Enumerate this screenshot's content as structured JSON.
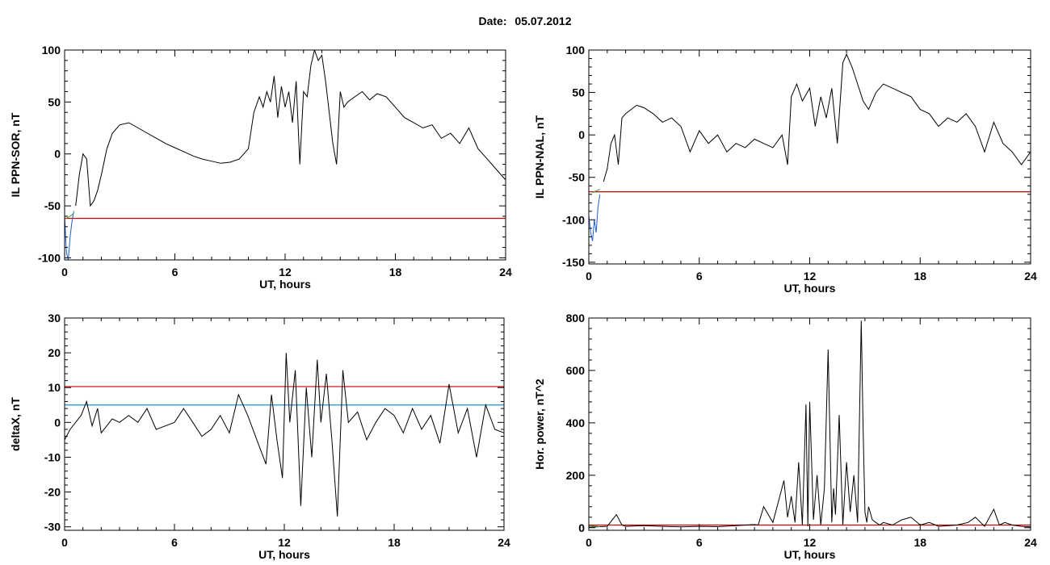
{
  "header": {
    "date_label": "Date:",
    "date_value": "05.07.2012"
  },
  "chart_data": [
    {
      "type": "line",
      "xlabel": "UT, hours",
      "ylabel": "IL PPN-SOR, nT",
      "xlim": [
        0,
        24
      ],
      "ylim": [
        -102,
        100
      ],
      "xticks": [
        0,
        6,
        12,
        18,
        24
      ],
      "yticks": [
        -100,
        -50,
        0,
        50,
        100
      ],
      "thresholds": [
        {
          "value": -62,
          "color": "#cc0000"
        }
      ],
      "series": [
        {
          "color": "#000000",
          "x": [
            0.6,
            0.8,
            1.0,
            1.2,
            1.4,
            1.6,
            1.8,
            2.0,
            2.3,
            2.6,
            3.0,
            3.5,
            4.0,
            4.5,
            5.0,
            5.5,
            6.0,
            6.5,
            7.0,
            7.5,
            8.0,
            8.5,
            9.0,
            9.5,
            10.0,
            10.3,
            10.6,
            10.8,
            11.0,
            11.2,
            11.4,
            11.6,
            11.8,
            12.0,
            12.2,
            12.4,
            12.6,
            12.8,
            13.0,
            13.2,
            13.4,
            13.6,
            13.8,
            14.0,
            14.2,
            14.4,
            14.6,
            14.8,
            15.0,
            15.2,
            15.4,
            15.8,
            16.2,
            16.6,
            17.0,
            17.5,
            18.0,
            18.5,
            19.0,
            19.5,
            20.0,
            20.5,
            21.0,
            21.5,
            22.0,
            22.5,
            23.0,
            23.5,
            24.0
          ],
          "y": [
            -50,
            -20,
            0,
            -5,
            -50,
            -45,
            -35,
            -20,
            5,
            20,
            28,
            30,
            25,
            20,
            15,
            10,
            6,
            2,
            -2,
            -5,
            -7,
            -9,
            -8,
            -5,
            5,
            40,
            55,
            45,
            60,
            50,
            75,
            35,
            65,
            45,
            60,
            30,
            70,
            -10,
            60,
            55,
            85,
            100,
            90,
            95,
            70,
            40,
            10,
            -10,
            60,
            45,
            50,
            55,
            60,
            52,
            58,
            55,
            45,
            35,
            30,
            25,
            28,
            15,
            20,
            10,
            25,
            5,
            -5,
            -15,
            -25
          ]
        },
        {
          "color": "#1f5fd0",
          "x": [
            0.0,
            0.1,
            0.2,
            0.3,
            0.4,
            0.5
          ],
          "y": [
            -60,
            -95,
            -102,
            -80,
            -65,
            -55
          ]
        },
        {
          "color": "#2fa02f",
          "x": [
            0.1,
            0.3,
            0.5
          ],
          "y": [
            -62,
            -60,
            -57
          ]
        }
      ]
    },
    {
      "type": "line",
      "xlabel": "UT, hours",
      "ylabel": "IL PPN-NAL, nT",
      "xlim": [
        0,
        24
      ],
      "ylim": [
        -152,
        100
      ],
      "xticks": [
        0,
        6,
        12,
        18,
        24
      ],
      "yticks": [
        -150,
        -100,
        -50,
        0,
        50,
        100
      ],
      "thresholds": [
        {
          "value": -67,
          "color": "#cc0000"
        }
      ],
      "series": [
        {
          "color": "#000000",
          "x": [
            0.8,
            1.0,
            1.2,
            1.4,
            1.6,
            1.8,
            2.0,
            2.3,
            2.6,
            3.0,
            3.5,
            4.0,
            4.5,
            5.0,
            5.5,
            6.0,
            6.5,
            7.0,
            7.5,
            8.0,
            8.5,
            9.0,
            9.5,
            10.0,
            10.5,
            10.8,
            11.0,
            11.3,
            11.6,
            12.0,
            12.3,
            12.6,
            12.9,
            13.2,
            13.5,
            13.8,
            14.0,
            14.3,
            14.6,
            14.9,
            15.2,
            15.6,
            16.0,
            16.5,
            17.0,
            17.5,
            18.0,
            18.5,
            19.0,
            19.5,
            20.0,
            20.5,
            21.0,
            21.5,
            22.0,
            22.5,
            23.0,
            23.5,
            24.0
          ],
          "y": [
            -55,
            -40,
            -10,
            0,
            -35,
            20,
            25,
            30,
            35,
            32,
            25,
            15,
            20,
            10,
            -20,
            5,
            -10,
            0,
            -20,
            -10,
            -15,
            -5,
            -10,
            -15,
            0,
            -35,
            45,
            60,
            40,
            55,
            10,
            45,
            20,
            55,
            -10,
            85,
            95,
            80,
            60,
            40,
            30,
            50,
            60,
            55,
            50,
            45,
            30,
            25,
            10,
            20,
            15,
            25,
            10,
            -20,
            15,
            -10,
            -20,
            -35,
            -20
          ]
        },
        {
          "color": "#1f5fd0",
          "x": [
            0.0,
            0.1,
            0.2,
            0.3,
            0.4,
            0.5,
            0.6
          ],
          "y": [
            -95,
            -115,
            -125,
            -100,
            -115,
            -85,
            -70
          ]
        },
        {
          "color": "#2fa02f",
          "x": [
            0.2,
            0.4,
            0.6
          ],
          "y": [
            -68,
            -66,
            -64
          ]
        }
      ]
    },
    {
      "type": "line",
      "xlabel": "UT, hours",
      "ylabel": "deltaX, nT",
      "xlim": [
        0,
        24
      ],
      "ylim": [
        -31,
        30
      ],
      "xticks": [
        0,
        6,
        12,
        18,
        24
      ],
      "yticks": [
        -30,
        -20,
        -10,
        0,
        10,
        20,
        30
      ],
      "thresholds": [
        {
          "value": 10.3,
          "color": "#cc0000"
        },
        {
          "value": 5,
          "color": "#1f8fd0"
        }
      ],
      "series": [
        {
          "color": "#000000",
          "x": [
            0.0,
            0.3,
            0.6,
            0.9,
            1.2,
            1.5,
            1.8,
            2.0,
            2.3,
            2.6,
            3.0,
            3.5,
            4.0,
            4.5,
            5.0,
            5.5,
            6.0,
            6.5,
            7.0,
            7.5,
            8.0,
            8.5,
            9.0,
            9.5,
            10.0,
            10.5,
            11.0,
            11.3,
            11.6,
            11.9,
            12.1,
            12.3,
            12.6,
            12.9,
            13.2,
            13.5,
            13.8,
            14.0,
            14.3,
            14.6,
            14.9,
            15.2,
            15.5,
            16.0,
            16.5,
            17.0,
            17.5,
            18.0,
            18.5,
            19.0,
            19.5,
            20.0,
            20.5,
            21.0,
            21.5,
            22.0,
            22.5,
            23.0,
            23.5,
            24.0
          ],
          "y": [
            -5,
            -2,
            0,
            2,
            6,
            -1,
            4,
            -3,
            -1,
            1,
            0,
            2,
            0,
            4,
            -2,
            -1,
            0,
            4,
            0,
            -4,
            -2,
            2,
            -3,
            8,
            2,
            -5,
            -12,
            8,
            -5,
            -16,
            20,
            0,
            15,
            -24,
            10,
            -10,
            18,
            0,
            14,
            -5,
            -27,
            15,
            0,
            3,
            -5,
            0,
            4,
            2,
            -3,
            4,
            -2,
            2,
            -6,
            11,
            -3,
            4,
            -10,
            5,
            -2,
            -3
          ]
        }
      ]
    },
    {
      "type": "line",
      "xlabel": "UT, hours",
      "ylabel": "Hor. power, nT^2",
      "xlim": [
        0,
        24
      ],
      "ylim": [
        -10,
        800
      ],
      "xticks": [
        0,
        6,
        12,
        18,
        24
      ],
      "yticks": [
        0,
        200,
        400,
        600,
        800
      ],
      "thresholds": [
        {
          "value": 10,
          "color": "#cc0000"
        }
      ],
      "series": [
        {
          "color": "#000000",
          "x": [
            0.0,
            1.0,
            1.5,
            1.8,
            2.0,
            3.0,
            4.0,
            5.0,
            6.0,
            7.0,
            8.0,
            9.0,
            9.2,
            9.5,
            10.0,
            10.3,
            10.6,
            10.8,
            11.0,
            11.2,
            11.4,
            11.6,
            11.8,
            11.9,
            12.0,
            12.2,
            12.4,
            12.6,
            12.8,
            13.0,
            13.2,
            13.3,
            13.4,
            13.6,
            13.8,
            14.0,
            14.2,
            14.4,
            14.6,
            14.8,
            14.9,
            15.0,
            15.1,
            15.2,
            15.4,
            15.6,
            15.8,
            16.0,
            16.5,
            17.0,
            17.5,
            18.0,
            18.5,
            19.0,
            20.0,
            20.6,
            21.0,
            21.5,
            22.0,
            22.3,
            22.6,
            23.0,
            23.5,
            24.0
          ],
          "y": [
            2,
            5,
            50,
            10,
            5,
            8,
            5,
            3,
            5,
            4,
            8,
            12,
            10,
            80,
            20,
            100,
            180,
            40,
            120,
            20,
            250,
            10,
            470,
            5,
            480,
            30,
            200,
            10,
            150,
            680,
            20,
            150,
            50,
            430,
            10,
            250,
            60,
            200,
            20,
            790,
            380,
            60,
            20,
            80,
            30,
            20,
            10,
            20,
            10,
            30,
            40,
            10,
            20,
            5,
            10,
            20,
            40,
            5,
            70,
            10,
            20,
            10,
            5,
            3
          ]
        },
        {
          "color": "#2fa02f",
          "x": [
            0.0,
            0.3,
            0.6
          ],
          "y": [
            8,
            6,
            4
          ]
        }
      ]
    }
  ]
}
